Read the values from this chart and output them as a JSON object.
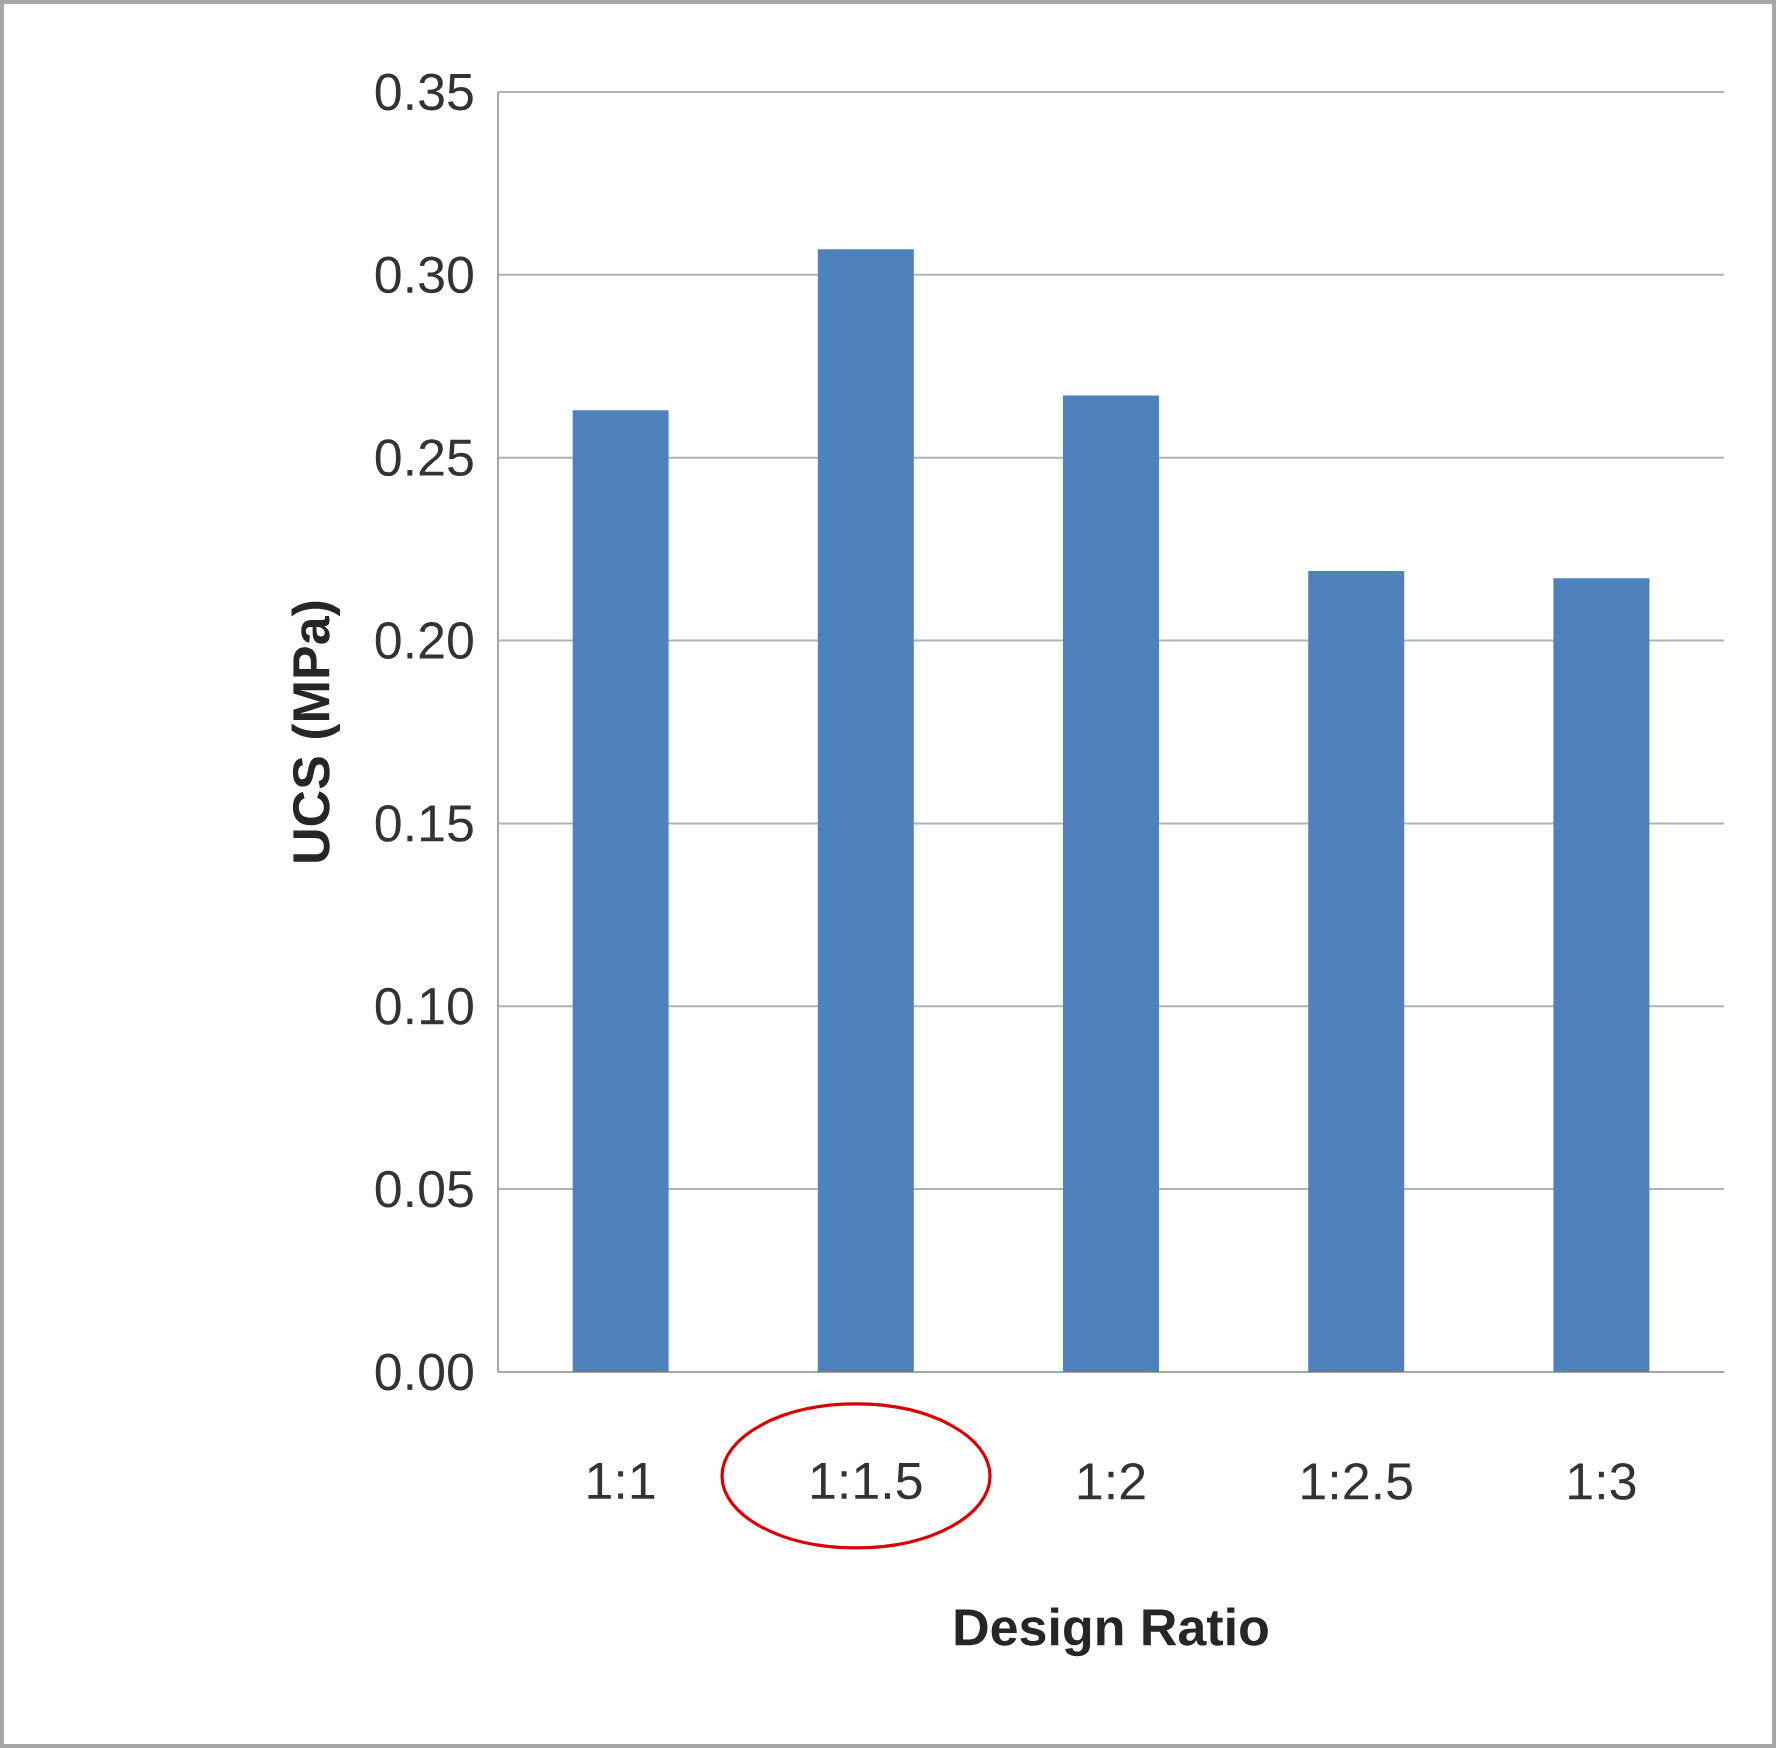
{
  "chart_data": {
    "type": "bar",
    "xlabel": "Design Ratio",
    "ylabel": "UCS (MPa)",
    "categories": [
      "1:1",
      "1:1.5",
      "1:2",
      "1:2.5",
      "1:3"
    ],
    "values": [
      0.263,
      0.307,
      0.267,
      0.219,
      0.217
    ],
    "color": "#4f81bd",
    "ylim": [
      0,
      0.35
    ],
    "yticks": [
      {
        "value": 0,
        "label": "0.00"
      },
      {
        "value": 0.05,
        "label": "0.05"
      },
      {
        "value": 0.1,
        "label": "0.10"
      },
      {
        "value": 0.15,
        "label": "0.15"
      },
      {
        "value": 0.2,
        "label": "0.20"
      },
      {
        "value": 0.25,
        "label": "0.25"
      },
      {
        "value": 0.3,
        "label": "0.30"
      },
      {
        "value": 0.35,
        "label": "0.35"
      }
    ],
    "grid": "y"
  }
}
